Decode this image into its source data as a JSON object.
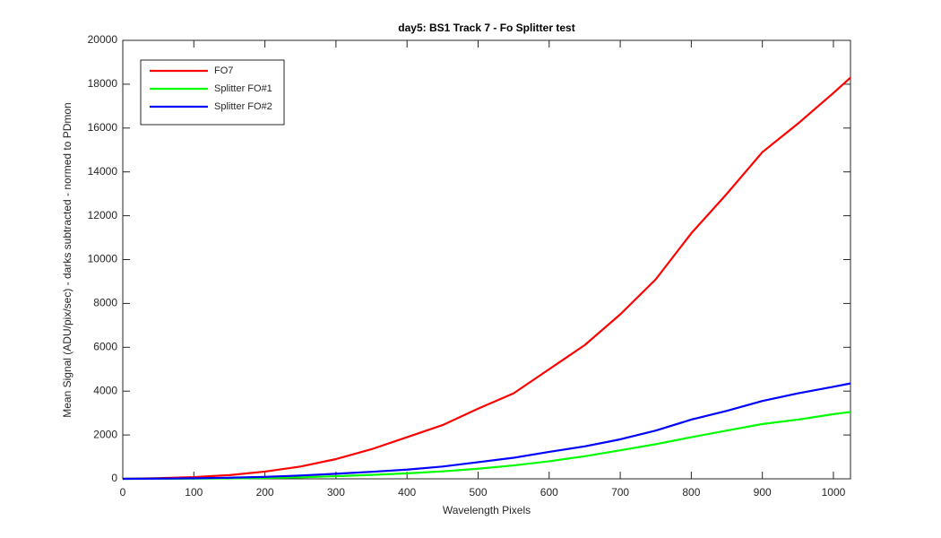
{
  "chart_data": {
    "type": "line",
    "title": "day5: BS1  Track 7 - Fo Splitter test",
    "x_label": "Wavelength Pixels",
    "y_label": "Mean Signal (ADU/pix/sec) - darks subtracted - normed to PDmon",
    "x": [
      0,
      50,
      100,
      150,
      200,
      250,
      300,
      350,
      400,
      450,
      500,
      550,
      600,
      650,
      700,
      750,
      800,
      850,
      900,
      950,
      1000,
      1024
    ],
    "series": [
      {
        "name": "FO7",
        "color": "#ff0000",
        "values": [
          0,
          30,
          80,
          170,
          330,
          560,
          900,
          1350,
          1900,
          2450,
          3200,
          3900,
          5000,
          6100,
          7500,
          9100,
          11200,
          13000,
          14900,
          16200,
          17600,
          18300
        ]
      },
      {
        "name": "Splitter FO#1",
        "color": "#00ff00",
        "values": [
          0,
          5,
          10,
          20,
          40,
          70,
          120,
          180,
          250,
          340,
          460,
          610,
          800,
          1030,
          1300,
          1580,
          1900,
          2200,
          2500,
          2700,
          2950,
          3050
        ]
      },
      {
        "name": "Splitter FO#2",
        "color": "#0000ff",
        "values": [
          0,
          10,
          25,
          50,
          90,
          150,
          230,
          320,
          420,
          560,
          760,
          960,
          1230,
          1480,
          1800,
          2200,
          2700,
          3100,
          3550,
          3900,
          4200,
          4350
        ]
      }
    ],
    "xlim": [
      0,
      1024
    ],
    "xticks": [
      0,
      100,
      200,
      300,
      400,
      500,
      600,
      700,
      800,
      900,
      1000
    ],
    "ylim": [
      0,
      20000
    ],
    "yticks": [
      0,
      2000,
      4000,
      6000,
      8000,
      10000,
      12000,
      14000,
      16000,
      18000,
      20000
    ],
    "grid": false,
    "legend": "upper-left"
  }
}
